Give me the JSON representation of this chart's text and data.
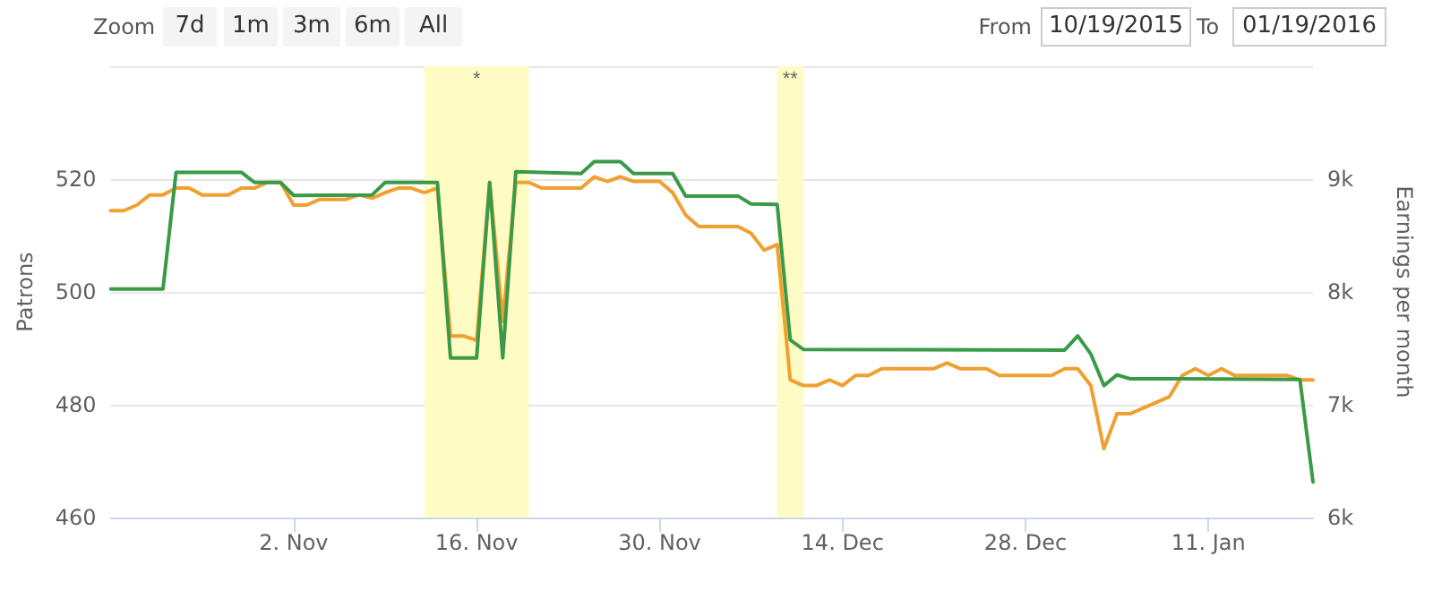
{
  "chart_data": {
    "type": "line",
    "ylabel": "Patrons",
    "y2label": "Earnings per month",
    "annotations": [
      "Zoom",
      "7d",
      "1m",
      "3m",
      "6m",
      "All",
      "From",
      "10/19/2015",
      "To",
      "01/19/2016"
    ],
    "xlim": [
      "2015-10-19",
      "2016-01-19"
    ],
    "xticks": [
      {
        "value": "2015-11-02",
        "label": "2. Nov"
      },
      {
        "value": "2015-11-16",
        "label": "16. Nov"
      },
      {
        "value": "2015-11-30",
        "label": "30. Nov"
      },
      {
        "value": "2015-12-14",
        "label": "14. Dec"
      },
      {
        "value": "2015-12-28",
        "label": "28. Dec"
      },
      {
        "value": "2016-01-11",
        "label": "11. Jan"
      }
    ],
    "ylim": [
      460,
      540
    ],
    "yticks": [
      460,
      480,
      500,
      520,
      {
        "value": 540,
        "label": null
      }
    ],
    "y2lim": [
      6000,
      10000
    ],
    "y2ticks": [
      {
        "value": 6000,
        "label": "6k"
      },
      {
        "value": 7000,
        "label": "7k"
      },
      {
        "value": 8000,
        "label": "8k"
      },
      {
        "value": 9000,
        "label": "9k"
      },
      {
        "value": 10000,
        "label": null
      }
    ],
    "grid": "y",
    "marker": "none",
    "line_style": "solid",
    "bands": [
      {
        "axis": "x",
        "from": "2015-11-12",
        "to": "2015-11-20",
        "label": "*",
        "color": "#fffbc4"
      },
      {
        "axis": "x",
        "from": "2015-12-09",
        "to": "2015-12-11",
        "label": "**",
        "color": "#fffbc4"
      }
    ],
    "series": [
      {
        "color": "#3a9a48",
        "x": [
          "2015-10-19",
          "2015-10-23",
          "2015-10-24",
          "2015-10-29",
          "2015-10-30",
          "2015-11-01",
          "2015-11-02",
          "2015-11-08",
          "2015-11-09",
          "2015-11-13",
          "2015-11-14",
          "2015-11-16",
          "2015-11-17",
          "2015-11-18",
          "2015-11-19",
          "2015-11-24",
          "2015-11-25",
          "2015-11-27",
          "2015-11-28",
          "2015-12-01",
          "2015-12-02",
          "2015-12-06",
          "2015-12-07",
          "2015-12-09",
          "2015-12-10",
          "2015-12-11",
          "2015-12-31",
          "2016-01-01",
          "2016-01-02",
          "2016-01-03",
          "2016-01-04",
          "2016-01-05",
          "2016-01-09",
          "2016-01-18",
          "2016-01-19"
        ],
        "values": [
          500.5,
          500.5,
          521.2,
          521.2,
          519.4,
          519.4,
          517.1,
          517.2,
          519.4,
          519.4,
          488.3,
          488.3,
          519.4,
          488.3,
          521.3,
          521,
          523.1,
          523.1,
          521,
          521,
          517,
          517,
          515.6,
          515.5,
          491.5,
          489.8,
          489.7,
          492.2,
          489,
          483.4,
          485.3,
          484.6,
          484.6,
          484.5,
          466.3
        ]
      },
      {
        "color": "#f0a030",
        "axis": "y2",
        "x": [
          "2015-10-19",
          "2015-10-20",
          "2015-10-21",
          "2015-10-22",
          "2015-10-23",
          "2015-10-24",
          "2015-10-25",
          "2015-10-26",
          "2015-10-28",
          "2015-10-29",
          "2015-10-30",
          "2015-10-31",
          "2015-11-01",
          "2015-11-02",
          "2015-11-03",
          "2015-11-04",
          "2015-11-06",
          "2015-11-07",
          "2015-11-08",
          "2015-11-09",
          "2015-11-10",
          "2015-11-11",
          "2015-11-12",
          "2015-11-13",
          "2015-11-14",
          "2015-11-15",
          "2015-11-16",
          "2015-11-17",
          "2015-11-18",
          "2015-11-19",
          "2015-11-20",
          "2015-11-21",
          "2015-11-24",
          "2015-11-25",
          "2015-11-26",
          "2015-11-27",
          "2015-11-28",
          "2015-11-30",
          "2015-12-01",
          "2015-12-02",
          "2015-12-03",
          "2015-12-06",
          "2015-12-07",
          "2015-12-08",
          "2015-12-09",
          "2015-12-10",
          "2015-12-11",
          "2015-12-12",
          "2015-12-13",
          "2015-12-14",
          "2015-12-15",
          "2015-12-16",
          "2015-12-17",
          "2015-12-21",
          "2015-12-22",
          "2015-12-23",
          "2015-12-25",
          "2015-12-26",
          "2015-12-30",
          "2015-12-31",
          "2016-01-01",
          "2016-01-02",
          "2016-01-03",
          "2016-01-04",
          "2016-01-05",
          "2016-01-08",
          "2016-01-09",
          "2016-01-10",
          "2016-01-11",
          "2016-01-12",
          "2016-01-13",
          "2016-01-17",
          "2016-01-18",
          "2016-01-19"
        ],
        "values": [
          8720,
          8720,
          8770,
          8860,
          8860,
          8920,
          8920,
          8860,
          8860,
          8920,
          8920,
          8970,
          8970,
          8770,
          8770,
          8820,
          8820,
          8860,
          8830,
          8880,
          8920,
          8920,
          8880,
          8920,
          7610,
          7610,
          7570,
          8970,
          7740,
          8970,
          8970,
          8920,
          8920,
          9020,
          8980,
          9020,
          8980,
          8980,
          8880,
          8680,
          8580,
          8580,
          8520,
          8370,
          8420,
          7220,
          7170,
          7170,
          7220,
          7170,
          7260,
          7260,
          7320,
          7320,
          7370,
          7320,
          7320,
          7260,
          7260,
          7320,
          7320,
          7170,
          6610,
          6920,
          6920,
          7070,
          7260,
          7320,
          7260,
          7320,
          7260,
          7260,
          7220,
          7220
        ]
      }
    ]
  }
}
